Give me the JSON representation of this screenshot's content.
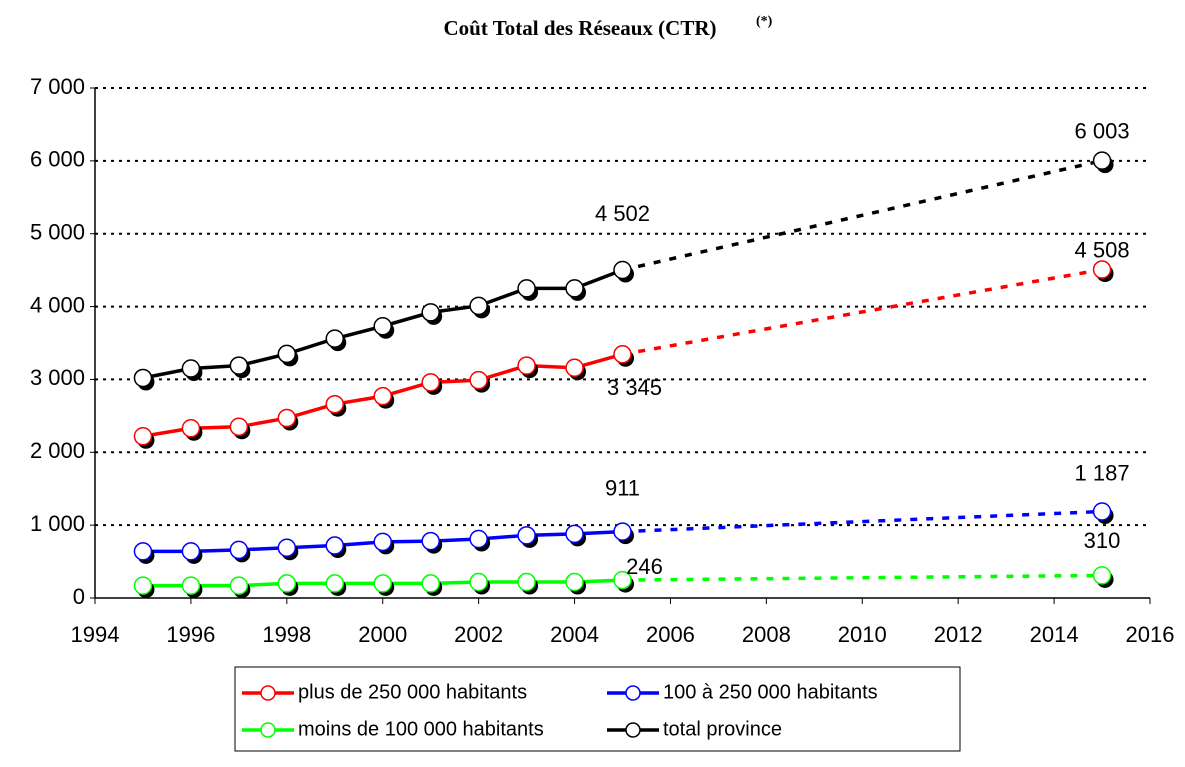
{
  "chart_data": {
    "type": "line",
    "title": "Coût Total des Réseaux (CTR)",
    "title_note": "(*)",
    "x": [
      1995,
      1996,
      1997,
      1998,
      1999,
      2000,
      2001,
      2002,
      2003,
      2004,
      2005,
      2015
    ],
    "xlim": [
      1994,
      2016
    ],
    "xticks": [
      1994,
      1996,
      1998,
      2000,
      2002,
      2004,
      2006,
      2008,
      2010,
      2012,
      2014,
      2016
    ],
    "ylim": [
      0,
      7000
    ],
    "yticks": [
      0,
      {
        "value": 1000,
        "label": "1 000"
      },
      {
        "value": 2000,
        "label": "2 000"
      },
      {
        "value": 3000,
        "label": "3 000"
      },
      {
        "value": 4000,
        "label": "4 000"
      },
      {
        "value": 5000,
        "label": "5 000"
      },
      {
        "value": 6000,
        "label": "6 000"
      },
      {
        "value": 7000,
        "label": "7 000"
      }
    ],
    "grid": true,
    "dashed_after": 2005,
    "legend": "bottom",
    "series": [
      {
        "name": "plus de 250 000 habitants",
        "color": "#ff0000",
        "values": [
          2220,
          2330,
          2350,
          2470,
          2660,
          2770,
          2960,
          2990,
          3190,
          3160,
          3345,
          4508
        ],
        "value_labels": [
          null,
          null,
          null,
          null,
          null,
          null,
          null,
          null,
          null,
          null,
          "3 345",
          "4 508"
        ]
      },
      {
        "name": "100 à 250 000 habitants",
        "color": "#0000ff",
        "values": [
          640,
          640,
          660,
          690,
          720,
          770,
          780,
          810,
          860,
          880,
          911,
          1187
        ],
        "value_labels": [
          null,
          null,
          null,
          null,
          null,
          null,
          null,
          null,
          null,
          null,
          "911",
          "1 187"
        ]
      },
      {
        "name": "moins de 100 000 habitants",
        "color": "#00ff00",
        "values": [
          170,
          170,
          170,
          200,
          200,
          200,
          200,
          220,
          220,
          220,
          246,
          310
        ],
        "value_labels": [
          null,
          null,
          null,
          null,
          null,
          null,
          null,
          null,
          null,
          null,
          "246",
          "310"
        ]
      },
      {
        "name": "total province",
        "color": "#000000",
        "values": [
          3020,
          3150,
          3190,
          3350,
          3560,
          3730,
          3920,
          4010,
          4250,
          4250,
          4502,
          6003
        ],
        "value_labels": [
          null,
          null,
          null,
          null,
          null,
          null,
          null,
          null,
          null,
          null,
          "4 502",
          "6 003"
        ]
      }
    ]
  }
}
